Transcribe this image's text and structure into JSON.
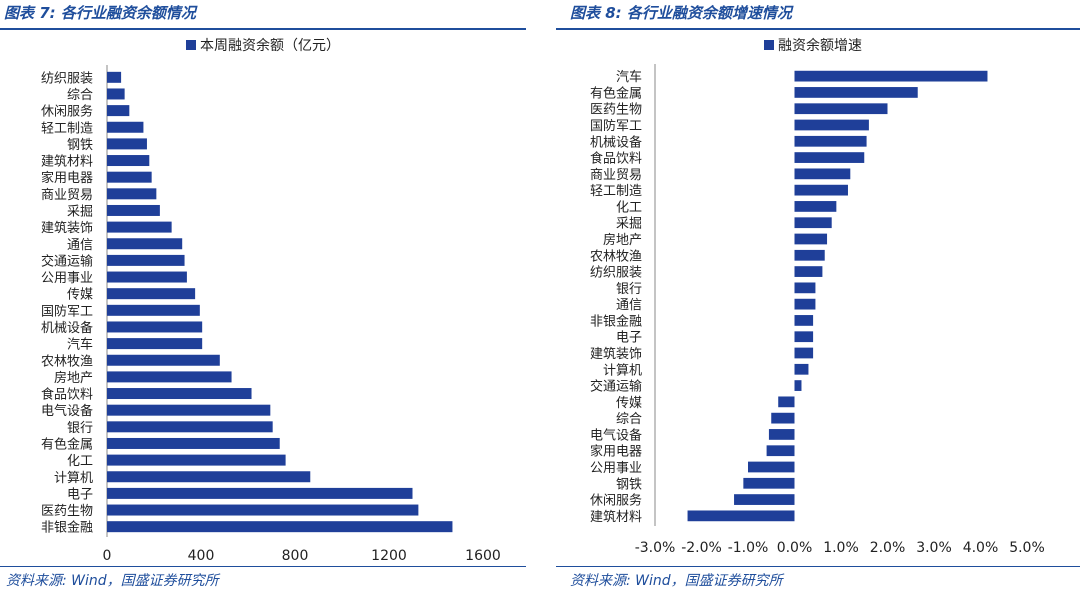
{
  "left_panel": {
    "title": "图表 7:  各行业融资余额情况",
    "source": "资料来源:  Wind，国盛证券研究所"
  },
  "right_panel": {
    "title": "图表 8:  各行业融资余额增速情况",
    "source": "资料来源:  Wind，国盛证券研究所"
  },
  "colors": {
    "bar": "#1f3f99",
    "accent": "#1f4e9c"
  },
  "chart_data": [
    {
      "type": "bar",
      "orientation": "horizontal",
      "categories": [
        "非银金融",
        "医药生物",
        "电子",
        "计算机",
        "化工",
        "有色金属",
        "银行",
        "电气设备",
        "食品饮料",
        "房地产",
        "农林牧渔",
        "汽车",
        "机械设备",
        "国防军工",
        "传媒",
        "公用事业",
        "交通运输",
        "通信",
        "建筑装饰",
        "采掘",
        "商业贸易",
        "家用电器",
        "建筑材料",
        "钢铁",
        "轻工制造",
        "休闲服务",
        "综合",
        "纺织服装"
      ],
      "series": [
        {
          "name": "本周融资余额（亿元）",
          "values": [
            1470,
            1325,
            1300,
            865,
            760,
            735,
            705,
            695,
            615,
            530,
            480,
            405,
            405,
            395,
            375,
            340,
            330,
            320,
            275,
            225,
            210,
            190,
            180,
            170,
            155,
            95,
            75,
            60
          ]
        }
      ],
      "xticks": [
        0,
        400,
        800,
        1200,
        1600
      ],
      "xlim": [
        0,
        1600
      ],
      "legend": "top"
    },
    {
      "type": "bar",
      "orientation": "horizontal",
      "categories": [
        "建筑材料",
        "休闲服务",
        "钢铁",
        "公用事业",
        "家用电器",
        "电气设备",
        "综合",
        "传媒",
        "交通运输",
        "计算机",
        "建筑装饰",
        "电子",
        "非银金融",
        "通信",
        "银行",
        "纺织服装",
        "农林牧渔",
        "房地产",
        "采掘",
        "化工",
        "轻工制造",
        "商业贸易",
        "食品饮料",
        "机械设备",
        "国防军工",
        "医药生物",
        "有色金属",
        "汽车"
      ],
      "series": [
        {
          "name": "融资余额增速",
          "values": [
            -2.3,
            -1.3,
            -1.1,
            -1.0,
            -0.6,
            -0.55,
            -0.5,
            -0.35,
            0.15,
            0.3,
            0.4,
            0.4,
            0.4,
            0.45,
            0.45,
            0.6,
            0.65,
            0.7,
            0.8,
            0.9,
            1.15,
            1.2,
            1.5,
            1.55,
            1.6,
            2.0,
            2.65,
            4.15
          ]
        }
      ],
      "xticks": [
        "-3.0%",
        "-2.0%",
        "-1.0%",
        "0.0%",
        "1.0%",
        "2.0%",
        "3.0%",
        "4.0%",
        "5.0%"
      ],
      "xlim": [
        -3.0,
        5.0
      ],
      "legend": "top"
    }
  ]
}
